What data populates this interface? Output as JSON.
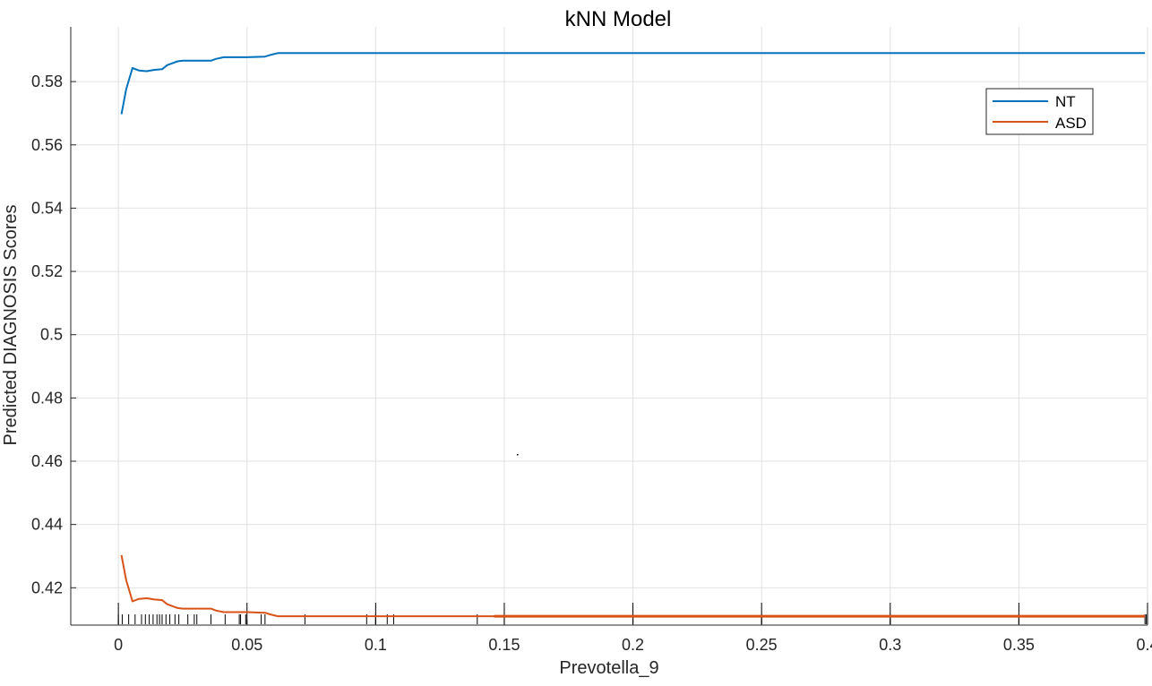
{
  "chart_data": {
    "type": "line",
    "title": "kNN Model",
    "xlabel": "Prevotella_9",
    "ylabel": "Predicted DIAGNOSIS Scores",
    "xlim": [
      -0.0185,
      0.4
    ],
    "ylim": [
      0.4082,
      0.5973
    ],
    "xticks": [
      0,
      0.05,
      0.1,
      0.15,
      0.2,
      0.25,
      0.3,
      0.35,
      0.4
    ],
    "xtick_labels": [
      "0",
      "0.05",
      "0.1",
      "0.15",
      "0.2",
      "0.25",
      "0.3",
      "0.35",
      "0.4"
    ],
    "yticks": [
      0.42,
      0.44,
      0.46,
      0.48,
      0.5,
      0.52,
      0.54,
      0.56,
      0.58
    ],
    "ytick_labels": [
      "0.42",
      "0.44",
      "0.46",
      "0.48",
      "0.5",
      "0.52",
      "0.54",
      "0.56",
      "0.58"
    ],
    "grid": true,
    "legend_position": "top-right",
    "series": [
      {
        "name": "NT",
        "color": "#0072BD",
        "x": [
          0.0012,
          0.003,
          0.0055,
          0.008,
          0.011,
          0.014,
          0.017,
          0.019,
          0.021,
          0.023,
          0.025,
          0.03,
          0.036,
          0.038,
          0.041,
          0.045,
          0.05,
          0.057,
          0.059,
          0.062,
          0.07,
          0.1,
          0.15,
          0.2,
          0.25,
          0.3,
          0.35,
          0.399
        ],
        "y": [
          0.5697,
          0.5775,
          0.5843,
          0.5835,
          0.5833,
          0.5837,
          0.5839,
          0.5852,
          0.5858,
          0.5864,
          0.5866,
          0.5866,
          0.5866,
          0.5872,
          0.5877,
          0.5877,
          0.5877,
          0.5879,
          0.5884,
          0.589,
          0.589,
          0.589,
          0.589,
          0.589,
          0.589,
          0.589,
          0.589,
          0.589
        ]
      },
      {
        "name": "ASD",
        "color": "#D95319",
        "x": [
          0.0012,
          0.003,
          0.0055,
          0.008,
          0.011,
          0.014,
          0.017,
          0.019,
          0.021,
          0.023,
          0.025,
          0.03,
          0.036,
          0.038,
          0.041,
          0.045,
          0.05,
          0.057,
          0.059,
          0.062,
          0.07,
          0.1,
          0.15,
          0.2,
          0.25,
          0.3,
          0.35,
          0.399
        ],
        "y": [
          0.4303,
          0.4225,
          0.4157,
          0.4165,
          0.4167,
          0.4163,
          0.4161,
          0.4148,
          0.4142,
          0.4136,
          0.4134,
          0.4134,
          0.4134,
          0.4128,
          0.4123,
          0.4123,
          0.4123,
          0.4121,
          0.4116,
          0.411,
          0.411,
          0.411,
          0.411,
          0.411,
          0.411,
          0.411,
          0.411,
          0.411
        ]
      }
    ],
    "rug_x": [
      0,
      0.0015,
      0.004,
      0.0065,
      0.009,
      0.0105,
      0.012,
      0.0135,
      0.015,
      0.016,
      0.017,
      0.0185,
      0.02,
      0.022,
      0.0235,
      0.027,
      0.0295,
      0.0305,
      0.036,
      0.0415,
      0.047,
      0.0475,
      0.0495,
      0.0555,
      0.057,
      0.0725,
      0.0965,
      0.1,
      0.1045,
      0.107,
      0.1395,
      0.15,
      0.2,
      0.25,
      0.3,
      0.35,
      0.399,
      0.3995
    ],
    "rug_tall_x": [
      0,
      0.05,
      0.1,
      0.15,
      0.2,
      0.25,
      0.3,
      0.35,
      0.4
    ]
  }
}
